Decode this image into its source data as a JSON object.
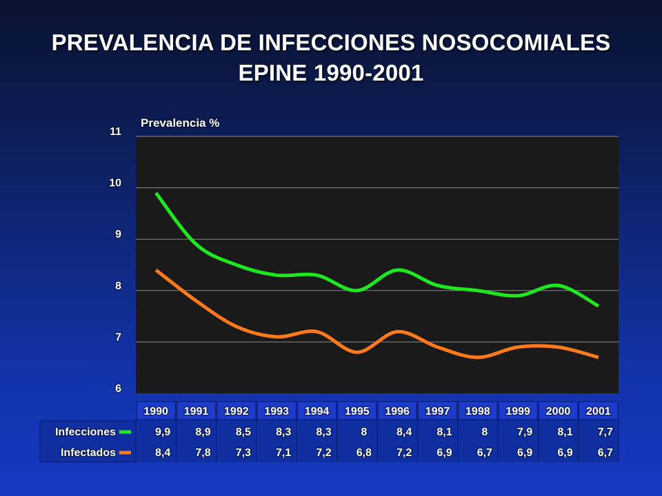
{
  "title_line1": "PREVALENCIA DE INFECCIONES NOSOCOMIALES",
  "title_line2": "EPINE 1990-2001",
  "colors": {
    "plot_background": "#1a1a1a",
    "infecciones": "#1ee81e",
    "infectados": "#ff7a1a",
    "grid": "#8a8a8a",
    "text": "#ffffff"
  },
  "chart_data": {
    "type": "line",
    "ylabel": "Prevalencia %",
    "ylim": [
      6,
      11
    ],
    "yticks": [
      "6",
      "7",
      "8",
      "9",
      "10",
      "11"
    ],
    "categories": [
      "1990",
      "1991",
      "1992",
      "1993",
      "1994",
      "1995",
      "1996",
      "1997",
      "1998",
      "1999",
      "2000",
      "2001"
    ],
    "grid": true,
    "legend_position": "left of data table",
    "series": [
      {
        "name": "Infecciones",
        "color": "#1ee81e",
        "values": [
          9.9,
          8.9,
          8.5,
          8.3,
          8.3,
          8.0,
          8.4,
          8.1,
          8.0,
          7.9,
          8.1,
          7.7
        ],
        "labels": [
          "9,9",
          "8,9",
          "8,5",
          "8,3",
          "8,3",
          "8",
          "8,4",
          "8,1",
          "8",
          "7,9",
          "8,1",
          "7,7"
        ]
      },
      {
        "name": "Infectados",
        "color": "#ff7a1a",
        "values": [
          8.4,
          7.8,
          7.3,
          7.1,
          7.2,
          6.8,
          7.2,
          6.9,
          6.7,
          6.9,
          6.9,
          6.7
        ],
        "labels": [
          "8,4",
          "7,8",
          "7,3",
          "7,1",
          "7,2",
          "6,8",
          "7,2",
          "6,9",
          "6,7",
          "6,9",
          "6,9",
          "6,7"
        ]
      }
    ]
  }
}
